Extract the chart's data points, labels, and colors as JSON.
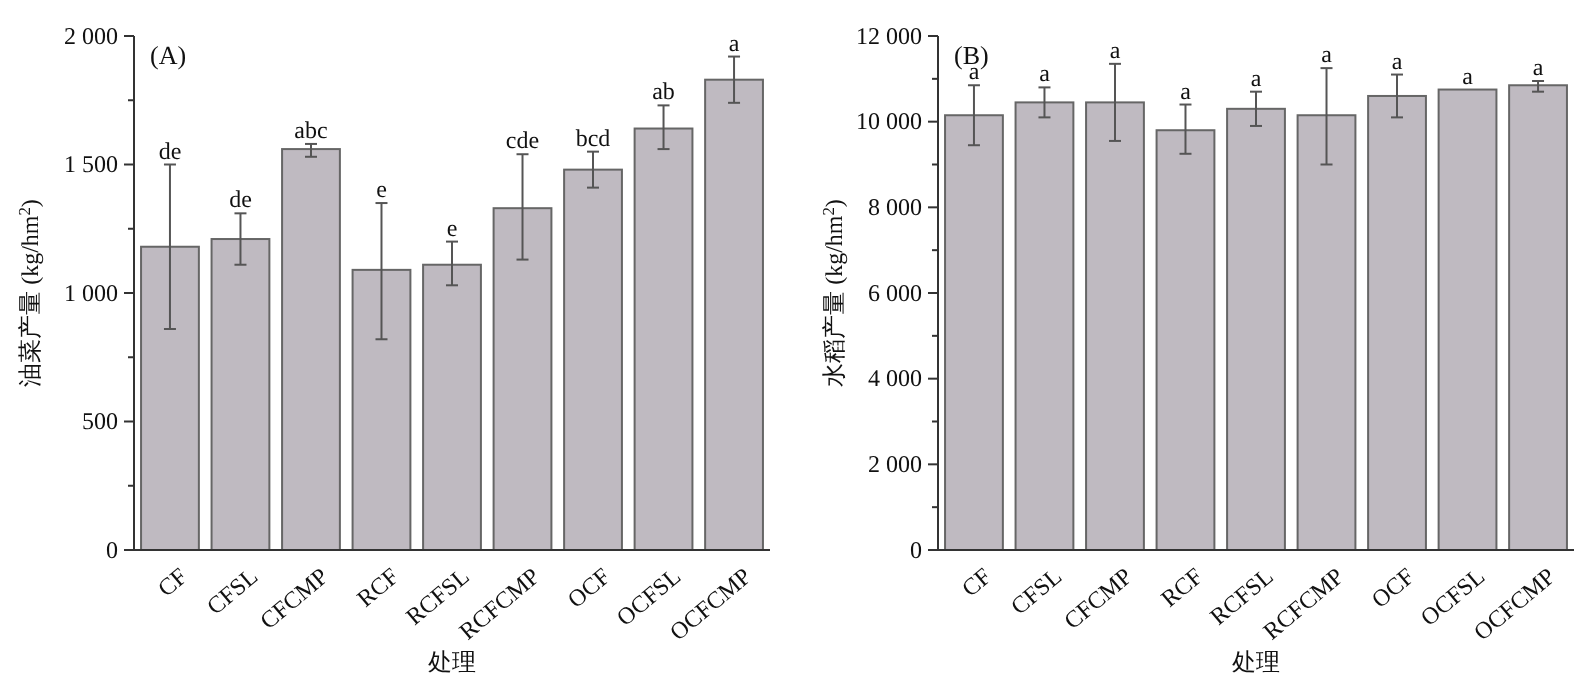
{
  "chart_data": [
    {
      "type": "bar",
      "title": "(A)",
      "xlabel": "处理",
      "ylabel": "油菜产量 (kg/hm$^{2}$)",
      "categories": [
        "CF",
        "CFSL",
        "CFCMP",
        "RCF",
        "RCFSL",
        "RCFCMP",
        "OCF",
        "OCFSL",
        "OCFCMP"
      ],
      "values": [
        1180,
        1210,
        1560,
        1090,
        1110,
        1330,
        1480,
        1640,
        1830
      ],
      "color": "#bfbac1",
      "errors": [
        [
          860,
          1500
        ],
        [
          1110,
          1310
        ],
        [
          1530,
          1580
        ],
        [
          820,
          1350
        ],
        [
          1030,
          1200
        ],
        [
          1130,
          1540
        ],
        [
          1410,
          1550
        ],
        [
          1560,
          1730
        ],
        [
          1740,
          1920
        ]
      ],
      "ylim": [
        0,
        2000
      ],
      "yticks": [
        {
          "value": 0,
          "label": "0"
        },
        {
          "value": 500,
          "label": "500"
        },
        {
          "value": 1000,
          "label": "1 000"
        },
        {
          "value": 1500,
          "label": "1 500"
        },
        {
          "value": 2000,
          "label": "2 000"
        }
      ],
      "grid": false,
      "annotations": [
        {
          "text": "de",
          "x": "CF",
          "y": 1500
        },
        {
          "text": "de",
          "x": "CFSL",
          "y": 1310
        },
        {
          "text": "abc",
          "x": "CFCMP",
          "y": 1580
        },
        {
          "text": "e",
          "x": "RCF",
          "y": 1350
        },
        {
          "text": "e",
          "x": "RCFSL",
          "y": 1200
        },
        {
          "text": "cde",
          "x": "RCFCMP",
          "y": 1540
        },
        {
          "text": "bcd",
          "x": "OCF",
          "y": 1550
        },
        {
          "text": "ab",
          "x": "OCFSL",
          "y": 1730
        },
        {
          "text": "a",
          "x": "OCFCMP",
          "y": 1920
        }
      ]
    },
    {
      "type": "bar",
      "title": "(B)",
      "xlabel": "处理",
      "ylabel": "水稻产量 (kg/hm$^{2}$)",
      "categories": [
        "CF",
        "CFSL",
        "CFCMP",
        "RCF",
        "RCFSL",
        "RCFCMP",
        "OCF",
        "OCFSL",
        "OCFCMP"
      ],
      "values": [
        10150,
        10450,
        10450,
        9800,
        10300,
        10150,
        10600,
        10750,
        10850
      ],
      "color": "#bfbac1",
      "errors": [
        [
          9450,
          10850
        ],
        [
          10100,
          10800
        ],
        [
          9550,
          11350
        ],
        [
          9250,
          10400
        ],
        [
          9900,
          10700
        ],
        [
          9000,
          11250
        ],
        [
          10100,
          11100
        ],
        null,
        [
          10700,
          10950
        ]
      ],
      "ylim": [
        0,
        12000
      ],
      "yticks": [
        {
          "value": 0,
          "label": "0"
        },
        {
          "value": 2000,
          "label": "2 000"
        },
        {
          "value": 4000,
          "label": "4 000"
        },
        {
          "value": 6000,
          "label": "6 000"
        },
        {
          "value": 8000,
          "label": "8 000"
        },
        {
          "value": 10000,
          "label": "10 000"
        },
        {
          "value": 12000,
          "label": "12 000"
        }
      ],
      "grid": false,
      "annotations": [
        {
          "text": "a",
          "x": "CF",
          "y": 10850
        },
        {
          "text": "a",
          "x": "CFSL",
          "y": 10800
        },
        {
          "text": "a",
          "x": "CFCMP",
          "y": 11350
        },
        {
          "text": "a",
          "x": "RCF",
          "y": 10400
        },
        {
          "text": "a",
          "x": "RCFSL",
          "y": 10700
        },
        {
          "text": "a",
          "x": "RCFCMP",
          "y": 11250
        },
        {
          "text": "a",
          "x": "OCF",
          "y": 11100
        },
        {
          "text": "a",
          "x": "OCFSL",
          "y": 10750
        },
        {
          "text": "a",
          "x": "OCFCMP",
          "y": 10950
        }
      ]
    }
  ]
}
